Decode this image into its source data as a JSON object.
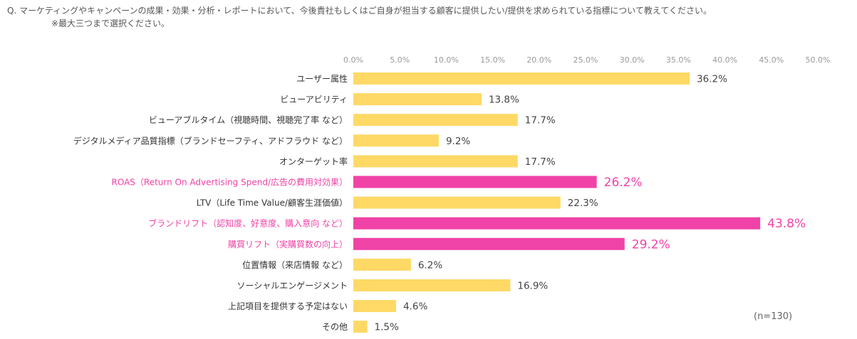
{
  "question": {
    "prefix": "Q.",
    "text": "マーケティングやキャンペーンの成果・効果・分析・レポートにおいて、今後貴社もしくはご自身が担当する顧客に提供したい/提供を求められている指標について教えてください。",
    "note": "※最大三つまで選択ください。"
  },
  "sample_size": "(n=130)",
  "colors": {
    "normal": "#FFD966",
    "highlight": "#F043A7",
    "axis_text": "#9A9A9A",
    "label_text": "#333333",
    "gridline": "#E6E6E6"
  },
  "chart_data": {
    "type": "bar",
    "orientation": "horizontal",
    "title": "",
    "xlabel": "",
    "ylabel": "",
    "xlim": [
      0,
      50
    ],
    "x_ticks": [
      "0.0%",
      "5.0%",
      "10.0%",
      "15.0%",
      "20.0%",
      "25.0%",
      "30.0%",
      "35.0%",
      "40.0%",
      "45.0%",
      "50.0%"
    ],
    "grid": false,
    "categories": [
      "ユーザー属性",
      "ビューアビリティ",
      "ビューアブルタイム（視聴時間、視聴完了率 など）",
      "デジタルメディア品質指標（ブランドセーフティ、アドフラウド など）",
      "オンターゲット率",
      "ROAS（Return On Advertising Spend/広告の費用対効果）",
      "LTV（Life Time Value/顧客生涯価値）",
      "ブランドリフト（認知度、好意度、購入意向 など）",
      "購買リフト（実購買数の向上）",
      "位置情報（来店情報 など）",
      "ソーシャルエンゲージメント",
      "上記項目を提供する予定はない",
      "その他"
    ],
    "values": [
      36.2,
      13.8,
      17.7,
      9.2,
      17.7,
      26.2,
      22.3,
      43.8,
      29.2,
      6.2,
      16.9,
      4.6,
      1.5
    ],
    "value_labels": [
      "36.2%",
      "13.8%",
      "17.7%",
      "9.2%",
      "17.7%",
      "26.2%",
      "22.3%",
      "43.8%",
      "29.2%",
      "6.2%",
      "16.9%",
      "4.6%",
      "1.5%"
    ],
    "highlighted": [
      false,
      false,
      false,
      false,
      false,
      true,
      false,
      true,
      true,
      false,
      false,
      false,
      false
    ]
  }
}
